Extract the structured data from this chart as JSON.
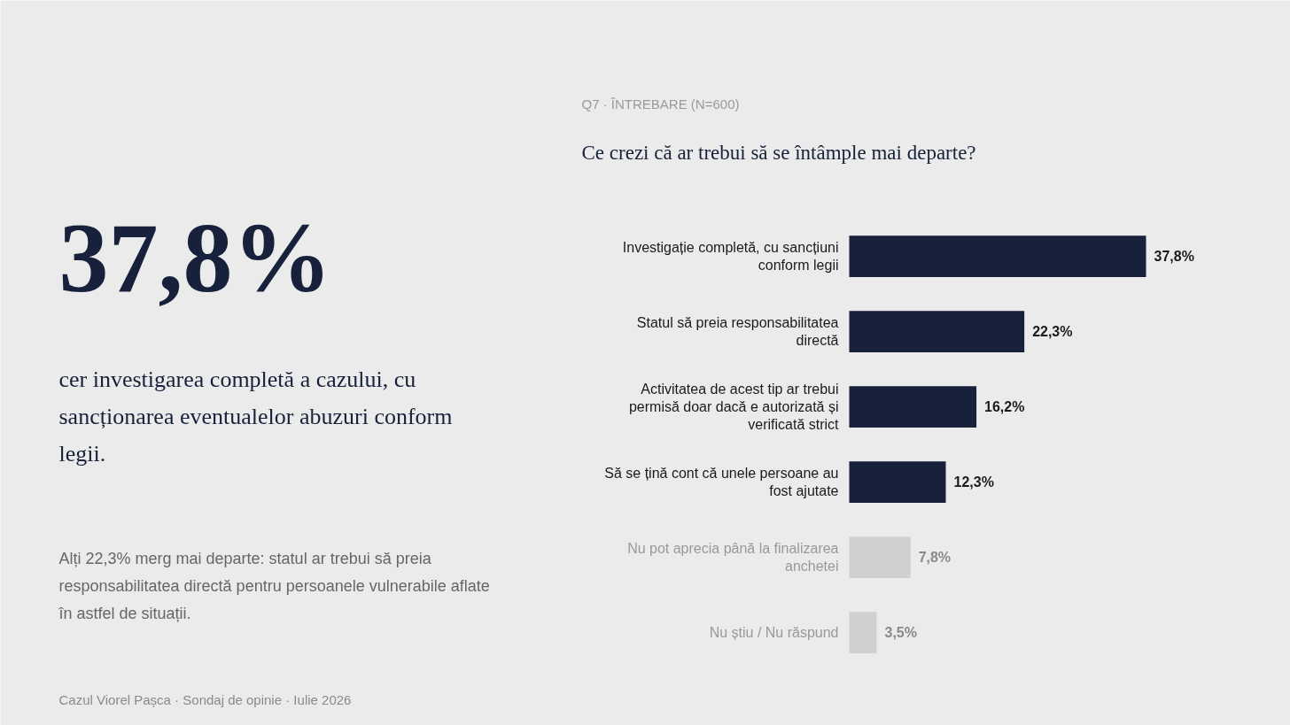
{
  "chart_data": {
    "type": "bar",
    "orientation": "horizontal",
    "subtitle": "Q7 · ÎNTREBARE (N=600)",
    "title": "Ce crezi că ar trebui să se întâmple mai departe?",
    "categories": [
      "Investigație completă, cu sancțiuni conform legii",
      "Statul să preia responsabilitatea directă",
      "Activitatea de acest tip ar trebui permisă doar dacă e autorizată și verificată strict",
      "Să se țină cont că unele persoane au fost ajutate",
      "Nu pot aprecia până la finalizarea anchetei",
      "Nu știu / Nu răspund"
    ],
    "values": [
      37.8,
      22.3,
      16.2,
      12.3,
      7.8,
      3.5
    ],
    "value_labels": [
      "37,8%",
      "22,3%",
      "16,2%",
      "12,3%",
      "7,8%",
      "3,5%"
    ],
    "colors": [
      "#17213b",
      "#17213b",
      "#17213b",
      "#17213b",
      "#d0d0d0",
      "#d0d0d0"
    ],
    "grid": false,
    "annotations": [
      "37,8%",
      "cer investigarea completă a cazului, cu sancționarea eventualelor abuzuri conform legii.",
      "Alți 22,3% merg mai departe: statul ar trebui să preia responsabilitatea directă pentru persoanele vulnerabile aflate în astfel de situații.",
      "Cazul Viorel Pașca · Sondaj de opinie · Iulie 2026"
    ]
  }
}
